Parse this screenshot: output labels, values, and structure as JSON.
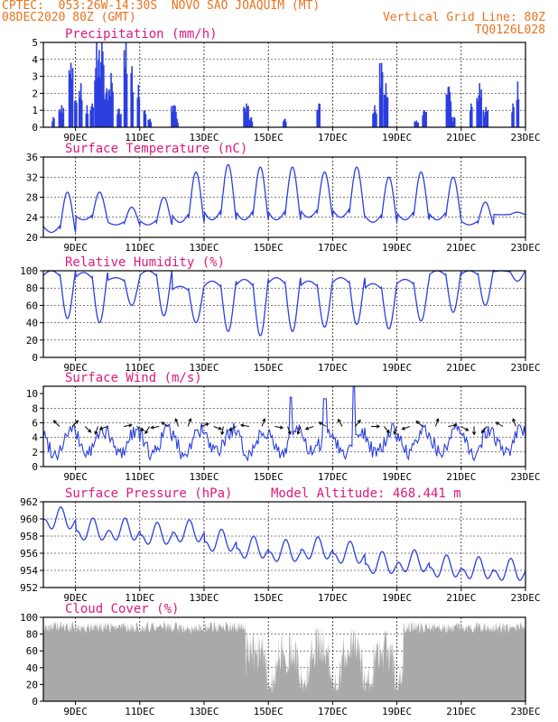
{
  "header": {
    "line1": "CPTEC:  053:26W-14:30S  NOVO SAO JOAQUIM (MT)",
    "line2_left": "08DEC2020 80Z (GMT)",
    "line2_right": "Vertical Grid Line: 80Z",
    "line3_right": "TQ0126L028"
  },
  "colors": {
    "header": "#e8731f",
    "title": "#e0187a",
    "line": "#2b3fe0",
    "cloud": "#a9a9a9",
    "arrow": "#000000"
  },
  "date_labels": [
    "9DEC",
    "11DEC",
    "13DEC",
    "15DEC",
    "17DEC",
    "19DEC",
    "21DEC",
    "23DEC"
  ],
  "chart_data": [
    {
      "type": "bar",
      "title": "Precipitation (mm/h)",
      "ylim": [
        0,
        5
      ],
      "yticks": [
        "0",
        "1",
        "2",
        "3",
        "4",
        "5"
      ],
      "events": [
        {
          "day": 8.3,
          "value": 0.6
        },
        {
          "day": 8.55,
          "value": 1.3
        },
        {
          "day": 8.85,
          "value": 3.8
        },
        {
          "day": 9.0,
          "value": 1.6
        },
        {
          "day": 9.15,
          "value": 2.6
        },
        {
          "day": 9.35,
          "value": 1.3
        },
        {
          "day": 9.5,
          "value": 1.4
        },
        {
          "day": 9.65,
          "value": 5.0
        },
        {
          "day": 9.8,
          "value": 5.0
        },
        {
          "day": 9.95,
          "value": 2.3
        },
        {
          "day": 10.1,
          "value": 3.2
        },
        {
          "day": 10.35,
          "value": 1.1
        },
        {
          "day": 10.55,
          "value": 5.0
        },
        {
          "day": 10.75,
          "value": 3.6
        },
        {
          "day": 10.95,
          "value": 2.5
        },
        {
          "day": 11.15,
          "value": 1.0
        },
        {
          "day": 11.3,
          "value": 0.5
        },
        {
          "day": 12.05,
          "value": 1.3
        },
        {
          "day": 12.15,
          "value": 0.5
        },
        {
          "day": 14.3,
          "value": 1.4
        },
        {
          "day": 14.45,
          "value": 0.6
        },
        {
          "day": 15.5,
          "value": 0.5
        },
        {
          "day": 16.55,
          "value": 1.4
        },
        {
          "day": 18.3,
          "value": 1.3
        },
        {
          "day": 18.5,
          "value": 3.8
        },
        {
          "day": 18.65,
          "value": 2.6
        },
        {
          "day": 19.6,
          "value": 0.4
        },
        {
          "day": 19.85,
          "value": 1.0
        },
        {
          "day": 20.6,
          "value": 2.4
        },
        {
          "day": 20.75,
          "value": 0.6
        },
        {
          "day": 21.3,
          "value": 1.4
        },
        {
          "day": 21.55,
          "value": 2.6
        },
        {
          "day": 21.75,
          "value": 1.2
        },
        {
          "day": 22.6,
          "value": 1.4
        },
        {
          "day": 22.75,
          "value": 2.7
        }
      ]
    },
    {
      "type": "line",
      "title": "Surface Temperature (nC)",
      "ylim": [
        20,
        36
      ],
      "yticks": [
        "20",
        "24",
        "28",
        "32",
        "36"
      ],
      "daily_min": [
        21,
        23.5,
        22.5,
        22.5,
        23,
        23.5,
        23.5,
        23.5,
        24,
        24,
        23,
        23.5,
        23.5,
        22.5,
        24.5
      ],
      "daily_max": [
        29,
        29,
        26,
        28,
        33,
        34.5,
        34,
        34,
        33,
        34,
        32,
        33,
        32,
        27,
        25
      ],
      "peak_hour_utc": 18
    },
    {
      "type": "line",
      "title": "Relative Humidity (%)",
      "ylim": [
        0,
        100
      ],
      "yticks": [
        "0",
        "20",
        "40",
        "60",
        "80",
        "100"
      ],
      "daily_min": [
        45,
        40,
        60,
        48,
        40,
        30,
        25,
        30,
        35,
        38,
        33,
        42,
        52,
        60,
        88
      ],
      "daily_max": [
        100,
        98,
        92,
        100,
        82,
        88,
        90,
        92,
        88,
        92,
        85,
        90,
        100,
        100,
        100
      ],
      "min_hour_utc": 18
    },
    {
      "type": "line",
      "title": "Surface Wind (m/s)",
      "ylim": [
        0,
        11
      ],
      "yticks": [
        "0",
        "2",
        "4",
        "6",
        "8",
        "10"
      ],
      "arrow_days": [
        8.5,
        8.9,
        9.3,
        9.7,
        10.0,
        10.5,
        10.9,
        11.3,
        11.6,
        11.9,
        12.2,
        12.5,
        12.9,
        13.3,
        13.6,
        14.0,
        14.4,
        14.8,
        15.2,
        15.6,
        16.0,
        16.4,
        16.8,
        17.3,
        17.7,
        18.2,
        18.6,
        19.0,
        19.4,
        19.8,
        20.2,
        20.6,
        21.0,
        21.4,
        21.8,
        22.3,
        22.7
      ],
      "arrow_dirs_deg": [
        315,
        45,
        135,
        200,
        250,
        80,
        120,
        210,
        260,
        300,
        340,
        20,
        70,
        110,
        190,
        240,
        280,
        20,
        100,
        160,
        200,
        250,
        300,
        330,
        40,
        90,
        140,
        200,
        250,
        310,
        20,
        80,
        120,
        180,
        220,
        300,
        340
      ]
    },
    {
      "type": "line",
      "title": "Surface Pressure (hPa)",
      "subtitle": "Model Altitude: 468.441 m",
      "ylim": [
        952,
        962
      ],
      "yticks": [
        "952",
        "954",
        "956",
        "958",
        "960",
        "962"
      ],
      "daily_mean": [
        959.8,
        958.5,
        958.5,
        958.0,
        958.3,
        957.2,
        956.4,
        956.0,
        956.3,
        955.8,
        954.6,
        954.8,
        954.2,
        954.0,
        953.8
      ],
      "daily_amplitude": 1.6
    },
    {
      "type": "area",
      "title": "Cloud Cover (%)",
      "ylim": [
        0,
        100
      ],
      "yticks": [
        "0",
        "20",
        "40",
        "60",
        "80",
        "100"
      ],
      "high_cover_ranges": [
        [
          8.0,
          13.8
        ],
        [
          19.3,
          23.0
        ]
      ],
      "low_cover_ranges": [
        [
          14.3,
          19.2
        ]
      ]
    }
  ]
}
